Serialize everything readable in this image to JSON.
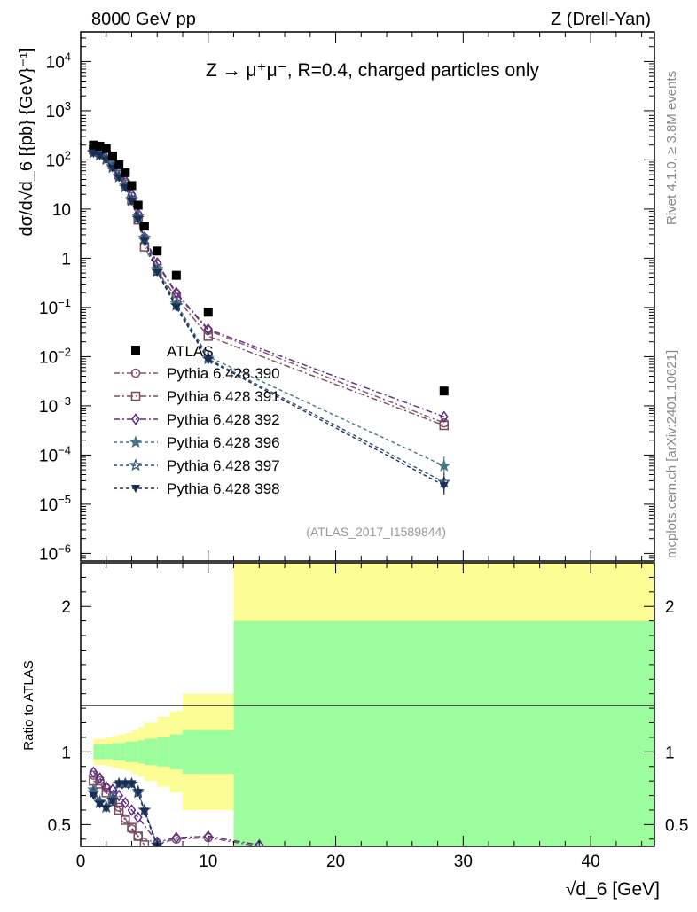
{
  "header": {
    "left": "8000 GeV pp",
    "right": "Z (Drell-Yan)"
  },
  "side_labels": {
    "rivet": "Rivet 4.1.0, ≥ 3.8M events",
    "mcplots": "mcplots.cern.ch [arXiv:2401.10621]"
  },
  "chart_data": {
    "type": "scatter",
    "title": "Z → μ⁺μ⁻, R=0.4, charged particles only",
    "analysis_tag": "(ATLAS_2017_I1589844)",
    "xlabel": "√d_6 [GeV]",
    "ylabel_main": "dσ/d√d_6 [{pb} {GeV}⁻¹]",
    "ylabel_ratio": "Ratio to ATLAS",
    "xlim": [
      0,
      45
    ],
    "ylim_main": [
      7e-07,
      40000
    ],
    "ylim_ratio": [
      0.35,
      2.3
    ],
    "log_y_main": true,
    "x_ticks": [
      "0",
      "10",
      "20",
      "30",
      "40"
    ],
    "y_ticks_main": [
      {
        "value": 1e-06,
        "base": "10",
        "exp": "−6"
      },
      {
        "value": 1e-05,
        "base": "10",
        "exp": "−5"
      },
      {
        "value": 0.0001,
        "base": "10",
        "exp": "−4"
      },
      {
        "value": 0.001,
        "base": "10",
        "exp": "−3"
      },
      {
        "value": 0.01,
        "base": "10",
        "exp": "−2"
      },
      {
        "value": 0.1,
        "base": "10",
        "exp": "−1"
      },
      {
        "value": 1,
        "base": "1",
        "exp": ""
      },
      {
        "value": 10,
        "base": "10",
        "exp": ""
      },
      {
        "value": 100,
        "base": "10",
        "exp": "2"
      },
      {
        "value": 1000,
        "base": "10",
        "exp": "3"
      },
      {
        "value": 10000,
        "base": "10",
        "exp": "4"
      }
    ],
    "y_ticks_ratio": [
      "0.5",
      "1",
      "2"
    ],
    "legend_position": "bottom-left",
    "data": {
      "name": "ATLAS",
      "color": "#000000",
      "x": [
        1.0,
        1.5,
        2.0,
        2.5,
        3.0,
        3.5,
        4.0,
        4.5,
        5.0,
        6.0,
        7.5,
        10.0,
        28.5
      ],
      "y": [
        200,
        190,
        170,
        120,
        80,
        55,
        30,
        12,
        4.5,
        1.4,
        0.45,
        0.08,
        0.002
      ]
    },
    "bins": [
      1.0,
      1.5,
      2.0,
      2.5,
      3.0,
      3.5,
      4.0,
      4.5,
      5.0,
      6.0,
      7.0,
      8.0,
      12.0,
      45.0
    ],
    "band_inner": [
      0.05,
      0.05,
      0.05,
      0.06,
      0.06,
      0.07,
      0.07,
      0.08,
      0.09,
      0.1,
      0.12,
      0.15,
      0.9
    ],
    "band_outer": [
      0.09,
      0.09,
      0.1,
      0.11,
      0.12,
      0.13,
      0.15,
      0.17,
      0.2,
      0.24,
      0.28,
      0.4,
      1.5
    ],
    "series": [
      {
        "name": "Pythia 6.428 390",
        "color": "#80506e",
        "marker": "circle-open",
        "dash": "7,3,2,3",
        "x": [
          1.0,
          1.5,
          2.0,
          2.5,
          3.0,
          3.5,
          4.0,
          4.5,
          5.0,
          6.0,
          7.5,
          10.0,
          28.5
        ],
        "y": [
          170,
          155,
          130,
          85,
          55,
          35,
          18,
          7.5,
          2.6,
          0.75,
          0.19,
          0.034,
          0.00045
        ]
      },
      {
        "name": "Pythia 6.428 391",
        "color": "#7a4a5e",
        "marker": "square-open",
        "dash": "7,3,2,3",
        "x": [
          1.0,
          1.5,
          2.0,
          2.5,
          3.0,
          3.5,
          4.0,
          4.5,
          5.0,
          6.0,
          7.5,
          10.0,
          28.5
        ],
        "y": [
          160,
          150,
          125,
          80,
          50,
          32,
          15,
          6,
          1.7,
          0.55,
          0.16,
          0.026,
          0.0004
        ]
      },
      {
        "name": "Pythia 6.428 392",
        "color": "#5b2d84",
        "marker": "diamond-open",
        "dash": "7,3,2,3",
        "x": [
          1.0,
          1.5,
          2.0,
          2.5,
          3.0,
          3.5,
          4.0,
          4.5,
          5.0,
          6.0,
          7.5,
          10.0,
          28.5
        ],
        "y": [
          175,
          160,
          135,
          90,
          58,
          38,
          20,
          8,
          2.7,
          0.8,
          0.2,
          0.036,
          0.0006
        ]
      },
      {
        "name": "Pythia 6.428 396",
        "color": "#4a7585",
        "marker": "star-filled",
        "dash": "4,3",
        "x": [
          1.0,
          1.5,
          2.0,
          2.5,
          3.0,
          3.5,
          4.0,
          4.5,
          5.0,
          6.0,
          7.5,
          10.0,
          28.5
        ],
        "y": [
          145,
          130,
          108,
          75,
          48,
          30,
          16,
          7,
          2.6,
          0.6,
          0.12,
          0.01,
          6e-05
        ]
      },
      {
        "name": "Pythia 6.428 397",
        "color": "#2f4c70",
        "marker": "star-open",
        "dash": "4,3",
        "x": [
          1.0,
          1.5,
          2.0,
          2.5,
          3.0,
          3.5,
          4.0,
          4.5,
          5.0,
          6.0,
          7.5,
          10.0,
          28.5
        ],
        "y": [
          140,
          125,
          102,
          70,
          45,
          28,
          15,
          6.5,
          2.4,
          0.55,
          0.11,
          0.009,
          2.8e-05
        ]
      },
      {
        "name": "Pythia 6.428 398",
        "color": "#1a2d52",
        "marker": "triangle-down-filled",
        "dash": "4,3",
        "x": [
          1.0,
          1.5,
          2.0,
          2.5,
          3.0,
          3.5,
          4.0,
          4.5,
          5.0,
          6.0,
          7.5,
          10.0,
          28.5
        ],
        "y": [
          135,
          120,
          100,
          68,
          43,
          27,
          14.5,
          6.2,
          2.3,
          0.52,
          0.1,
          0.0085,
          2.4e-05
        ]
      }
    ],
    "ratio_series": [
      {
        "name": "Pythia 6.428 390",
        "x": [
          1.0,
          1.5,
          2.0,
          2.5,
          3.0,
          3.5,
          4.0,
          4.5,
          6.0,
          7.5,
          10.0,
          14.0
        ],
        "y": [
          0.84,
          0.8,
          0.75,
          0.7,
          0.62,
          0.54,
          0.47,
          0.42,
          0.37,
          0.4,
          0.41,
          0.35
        ]
      },
      {
        "name": "Pythia 6.428 391",
        "x": [
          1.0,
          1.5,
          2.0,
          2.5,
          3.0,
          3.5,
          4.0,
          4.5,
          5.0
        ],
        "y": [
          0.8,
          0.78,
          0.72,
          0.66,
          0.6,
          0.53,
          0.48,
          0.42,
          0.36
        ]
      },
      {
        "name": "Pythia 6.428 392",
        "x": [
          1.0,
          1.5,
          2.0,
          2.5,
          3.0,
          3.5,
          4.0,
          4.5,
          6.0,
          7.5,
          10.0,
          14.0
        ],
        "y": [
          0.86,
          0.82,
          0.76,
          0.74,
          0.7,
          0.65,
          0.6,
          0.55,
          0.38,
          0.41,
          0.42,
          0.36
        ]
      },
      {
        "name": "Pythia 6.428 396",
        "x": [
          1.0,
          1.5,
          2.0,
          2.5,
          3.0,
          3.5,
          4.0,
          4.5,
          5.0,
          6.0
        ],
        "y": [
          0.74,
          0.66,
          0.62,
          0.68,
          0.78,
          0.78,
          0.78,
          0.73,
          0.6,
          0.36
        ]
      },
      {
        "name": "Pythia 6.428 397",
        "x": [
          1.0,
          1.5,
          2.0,
          2.5,
          3.0,
          3.5,
          4.0,
          4.5,
          5.0,
          6.0
        ],
        "y": [
          0.72,
          0.65,
          0.62,
          0.67,
          0.78,
          0.78,
          0.78,
          0.72,
          0.6,
          0.36
        ]
      },
      {
        "name": "Pythia 6.428 398",
        "x": [
          1.0,
          1.5,
          2.0,
          2.5,
          3.0,
          3.5,
          4.0,
          4.5,
          5.0,
          6.0
        ],
        "y": [
          0.7,
          0.64,
          0.61,
          0.66,
          0.78,
          0.78,
          0.78,
          0.72,
          0.59,
          0.35
        ]
      }
    ],
    "band_colors": {
      "inner": "#9cfd9c",
      "outer": "#fdfd96"
    }
  }
}
